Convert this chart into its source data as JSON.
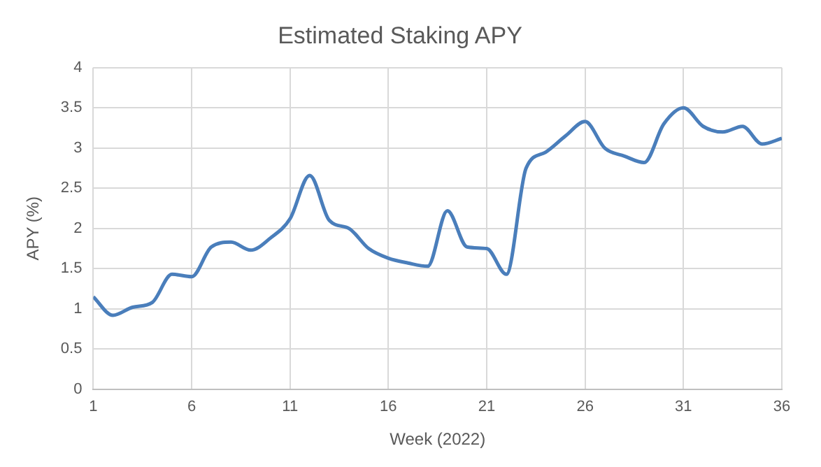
{
  "chart_data": {
    "type": "line",
    "title": "Estimated Staking APY",
    "xlabel": "Week (2022)",
    "ylabel": "APY (%)",
    "x": [
      1,
      2,
      3,
      4,
      5,
      6,
      7,
      8,
      9,
      10,
      11,
      12,
      13,
      14,
      15,
      16,
      17,
      18,
      19,
      20,
      21,
      22,
      23,
      24,
      25,
      26,
      27,
      28,
      29,
      30,
      31,
      32,
      33,
      34,
      35,
      36
    ],
    "xlim": [
      1,
      36
    ],
    "xticks": [
      1,
      6,
      11,
      16,
      21,
      26,
      31,
      36
    ],
    "series": [
      {
        "color": "#4a7ebb",
        "values": [
          1.15,
          0.92,
          1.02,
          1.08,
          1.43,
          1.4,
          1.77,
          1.83,
          1.73,
          1.88,
          2.12,
          2.66,
          2.1,
          2.0,
          1.75,
          1.63,
          1.57,
          1.53,
          2.22,
          1.77,
          1.75,
          1.43,
          2.75,
          2.95,
          3.15,
          3.33,
          3.0,
          2.9,
          2.82,
          3.3,
          3.5,
          3.27,
          3.2,
          3.27,
          3.05,
          3.12
        ]
      }
    ],
    "ylim": [
      0,
      4
    ],
    "yticks": [
      0,
      0.5,
      1,
      1.5,
      2,
      2.5,
      3,
      3.5,
      4
    ],
    "grid": true,
    "legend": false,
    "marker": "none",
    "line_style": "solid"
  }
}
